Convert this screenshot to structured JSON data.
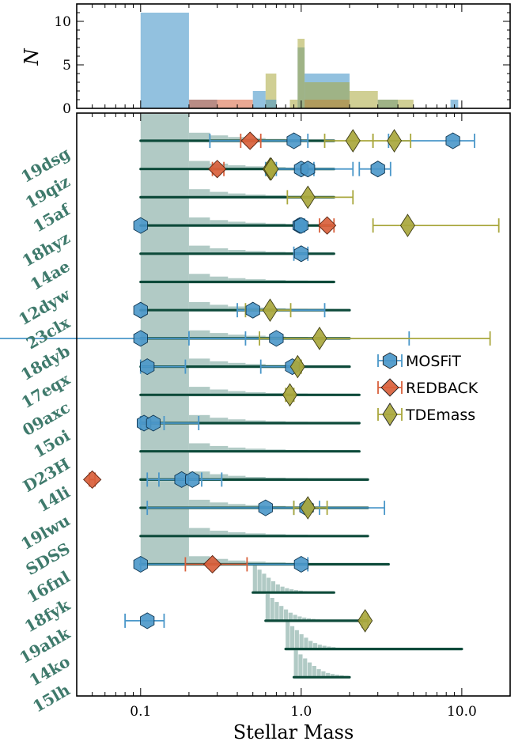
{
  "chart_data": {
    "type": "scatter",
    "x_scale": "log",
    "xlabel": "Stellar Mass",
    "x_ticks": [
      0.1,
      1.0,
      10.0
    ],
    "x_tick_labels": [
      "0.1",
      "1.0",
      "10.0"
    ],
    "xlim": [
      0.04,
      20
    ],
    "colors": {
      "MOSFiT": "#4a97c9",
      "REDBACK": "#d9603b",
      "TDEmass": "#a9a73d",
      "range_line": "#0d4a3a",
      "imf_bar": "#a8c4bf",
      "row_label": "#3f7a6c"
    },
    "histogram": {
      "ylabel": "N",
      "ylim": [
        0,
        12
      ],
      "y_ticks": [
        0,
        5,
        10
      ],
      "y_tick_labels": [
        "0",
        "5",
        "10"
      ],
      "bars": [
        {
          "series": "MOSFiT",
          "x0": 0.1,
          "x1": 0.2,
          "value": 11
        },
        {
          "series": "MOSFiT",
          "x0": 0.2,
          "x1": 0.3,
          "value": 1
        },
        {
          "series": "REDBACK",
          "x0": 0.2,
          "x1": 0.3,
          "value": 1
        },
        {
          "series": "REDBACK",
          "x0": 0.3,
          "x1": 0.5,
          "value": 1
        },
        {
          "series": "MOSFiT",
          "x0": 0.5,
          "x1": 0.6,
          "value": 2
        },
        {
          "series": "TDEmass",
          "x0": 0.6,
          "x1": 0.7,
          "value": 4
        },
        {
          "series": "MOSFiT",
          "x0": 0.6,
          "x1": 0.7,
          "value": 1
        },
        {
          "series": "TDEmass",
          "x0": 0.85,
          "x1": 0.95,
          "value": 1
        },
        {
          "series": "MOSFiT",
          "x0": 0.95,
          "x1": 1.05,
          "value": 7
        },
        {
          "series": "TDEmass",
          "x0": 0.95,
          "x1": 1.05,
          "value": 8
        },
        {
          "series": "MOSFiT",
          "x0": 1.05,
          "x1": 2.0,
          "value": 4
        },
        {
          "series": "REDBACK",
          "x0": 1.05,
          "x1": 2.0,
          "value": 1
        },
        {
          "series": "TDEmass",
          "x0": 1.05,
          "x1": 2.0,
          "value": 3
        },
        {
          "series": "TDEmass",
          "x0": 2.0,
          "x1": 3.0,
          "value": 2
        },
        {
          "series": "MOSFiT",
          "x0": 3.0,
          "x1": 4.0,
          "value": 1
        },
        {
          "series": "TDEmass",
          "x0": 3.0,
          "x1": 4.0,
          "value": 1
        },
        {
          "series": "TDEmass",
          "x0": 4.0,
          "x1": 5.0,
          "value": 1
        },
        {
          "series": "MOSFiT",
          "x0": 8.5,
          "x1": 9.5,
          "value": 1
        }
      ]
    },
    "legend": {
      "placement": "right",
      "entries": [
        {
          "series": "MOSFiT",
          "label": "MOSFiT",
          "marker": "hexagon"
        },
        {
          "series": "REDBACK",
          "label": "REDBACK",
          "marker": "diamond"
        },
        {
          "series": "TDEmass",
          "label": "TDEmass",
          "marker": "thin-diamond"
        }
      ]
    },
    "rows": [
      {
        "name": "19dsg",
        "range": [
          0.1,
          1.6
        ],
        "imf": true,
        "points": [
          {
            "series": "MOSFiT",
            "x": 0.9,
            "lo": 0.27,
            "hi": 1.1
          },
          {
            "series": "MOSFiT",
            "x": 8.8,
            "lo": 3.5,
            "hi": 12
          },
          {
            "series": "REDBACK",
            "x": 0.48,
            "lo": 0.42,
            "hi": 0.56
          },
          {
            "series": "TDEmass",
            "x": 2.1,
            "lo": 1.4,
            "hi": 2.8
          },
          {
            "series": "TDEmass",
            "x": 3.8,
            "lo": 2.8,
            "hi": 4.8
          }
        ]
      },
      {
        "name": "19qiz",
        "range": [
          0.1,
          1.6
        ],
        "imf": true,
        "points": [
          {
            "series": "MOSFiT",
            "x": 1.0,
            "lo": 0.6,
            "hi": 1.2
          },
          {
            "series": "MOSFiT",
            "x": 1.1,
            "lo": 0.7,
            "hi": 2.1
          },
          {
            "series": "MOSFiT",
            "x": 3.0,
            "lo": 2.3,
            "hi": 3.6
          },
          {
            "series": "REDBACK",
            "x": 0.3,
            "lo": 0.28,
            "hi": 0.33
          },
          {
            "series": "TDEmass",
            "x": 0.64,
            "lo": 0.61,
            "hi": 0.67
          },
          {
            "series": "TDEmass",
            "x": 0.65,
            "lo": 0.62,
            "hi": 0.68
          }
        ]
      },
      {
        "name": "15af",
        "range": [
          0.1,
          1.6
        ],
        "imf": true,
        "points": [
          {
            "series": "TDEmass",
            "x": 1.1,
            "lo": 0.82,
            "hi": 2.1
          }
        ]
      },
      {
        "name": "18hyz",
        "range": [
          0.1,
          1.6
        ],
        "imf": true,
        "points": [
          {
            "series": "MOSFiT",
            "x": 0.1,
            "lo": 0.1,
            "hi": 0.1
          },
          {
            "series": "MOSFiT",
            "x": 0.98,
            "lo": 0.95,
            "hi": 1.05
          },
          {
            "series": "MOSFiT",
            "x": 1.0,
            "lo": 0.97,
            "hi": 1.03
          },
          {
            "series": "REDBACK",
            "x": 1.45,
            "lo": 1.3,
            "hi": 1.6
          },
          {
            "series": "TDEmass",
            "x": 4.6,
            "lo": 2.8,
            "hi": 17
          }
        ]
      },
      {
        "name": "14ae",
        "range": [
          0.1,
          1.6
        ],
        "imf": true,
        "points": [
          {
            "series": "MOSFiT",
            "x": 1.0,
            "lo": 0.9,
            "hi": 1.1
          }
        ]
      },
      {
        "name": "12dyw",
        "range": [
          0.1,
          1.6
        ],
        "imf": true,
        "points": []
      },
      {
        "name": "23clx",
        "range": [
          0.1,
          2.0
        ],
        "imf": true,
        "points": [
          {
            "series": "MOSFiT",
            "x": 0.1,
            "lo": 0.1,
            "hi": 0.1
          },
          {
            "series": "MOSFiT",
            "x": 0.5,
            "lo": 0.4,
            "hi": 1.4
          },
          {
            "series": "TDEmass",
            "x": 0.64,
            "lo": 0.45,
            "hi": 0.86
          }
        ]
      },
      {
        "name": "18dyb",
        "range": [
          0.1,
          2.0
        ],
        "imf": true,
        "points": [
          {
            "series": "MOSFiT",
            "x": 0.1,
            "lo": 0.01,
            "hi": 0.45
          },
          {
            "series": "MOSFiT",
            "x": 0.7,
            "lo": 0.2,
            "hi": 4.7
          },
          {
            "series": "TDEmass",
            "x": 1.3,
            "lo": 0.55,
            "hi": 15
          }
        ]
      },
      {
        "name": "17eqx",
        "range": [
          0.1,
          2.0
        ],
        "imf": true,
        "points": [
          {
            "series": "MOSFiT",
            "x": 0.11,
            "lo": 0.1,
            "hi": 0.19
          },
          {
            "series": "MOSFiT",
            "x": 0.88,
            "lo": 0.56,
            "hi": 0.98
          },
          {
            "series": "TDEmass",
            "x": 0.95,
            "lo": 0.9,
            "hi": 1.0
          }
        ]
      },
      {
        "name": "09axc",
        "range": [
          0.1,
          2.3
        ],
        "imf": true,
        "points": [
          {
            "series": "TDEmass",
            "x": 0.85,
            "lo": 0.8,
            "hi": 0.9
          }
        ]
      },
      {
        "name": "15oi",
        "range": [
          0.1,
          2.3
        ],
        "imf": true,
        "points": [
          {
            "series": "MOSFiT",
            "x": 0.105,
            "lo": 0.1,
            "hi": 0.14
          },
          {
            "series": "MOSFiT",
            "x": 0.12,
            "lo": 0.1,
            "hi": 0.23
          }
        ]
      },
      {
        "name": "D23H",
        "range": [
          0.1,
          2.3
        ],
        "imf": true,
        "points": []
      },
      {
        "name": "14li",
        "range": [
          0.1,
          2.6
        ],
        "imf": true,
        "points": [
          {
            "series": "REDBACK",
            "x": 0.05,
            "lo": 0.048,
            "hi": 0.052
          },
          {
            "series": "MOSFiT",
            "x": 0.18,
            "lo": 0.11,
            "hi": 0.24
          },
          {
            "series": "MOSFiT",
            "x": 0.21,
            "lo": 0.13,
            "hi": 0.32
          }
        ]
      },
      {
        "name": "19lwu",
        "range": [
          0.1,
          2.6
        ],
        "imf": true,
        "points": [
          {
            "series": "MOSFiT",
            "x": 0.6,
            "lo": 0.11,
            "hi": 3.3
          },
          {
            "series": "MOSFiT",
            "x": 1.08,
            "lo": 0.9,
            "hi": 1.3
          },
          {
            "series": "TDEmass",
            "x": 1.1,
            "lo": 0.9,
            "hi": 1.45
          }
        ]
      },
      {
        "name": "SDSS",
        "range": [
          0.1,
          2.6
        ],
        "imf": true,
        "points": []
      },
      {
        "name": "16fnl",
        "range": [
          0.1,
          3.5
        ],
        "imf": true,
        "points": [
          {
            "series": "MOSFiT",
            "x": 0.1,
            "lo": 0.1,
            "hi": 0.1
          },
          {
            "series": "MOSFiT",
            "x": 1.0,
            "lo": 0.1,
            "hi": 1.1
          },
          {
            "series": "REDBACK",
            "x": 0.28,
            "lo": 0.19,
            "hi": 0.46
          }
        ]
      },
      {
        "name": "18fyk",
        "range": [
          0.5,
          1.6
        ],
        "imf": true,
        "points": []
      },
      {
        "name": "19ahk",
        "range": [
          0.6,
          2.6
        ],
        "imf": true,
        "points": [
          {
            "series": "MOSFiT",
            "x": 0.11,
            "lo": 0.08,
            "hi": 0.14
          },
          {
            "series": "TDEmass",
            "x": 2.5,
            "lo": 2.4,
            "hi": 2.6
          }
        ]
      },
      {
        "name": "14ko",
        "range": [
          0.8,
          10
        ],
        "imf": true,
        "points": []
      },
      {
        "name": "15lh",
        "range": [
          0.9,
          2.0
        ],
        "imf": true,
        "points": []
      }
    ]
  }
}
